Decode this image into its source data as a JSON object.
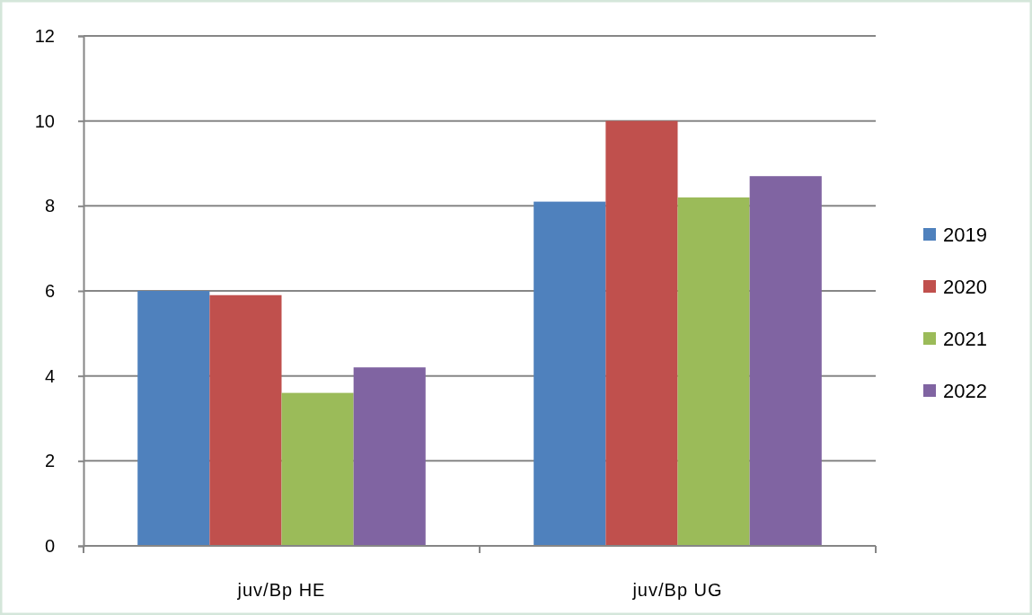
{
  "chart_data": {
    "type": "bar",
    "categories": [
      "juv/Bp HE",
      "juv/Bp UG"
    ],
    "series": [
      {
        "name": "2019",
        "color": "#4f81bd",
        "values": [
          6.0,
          8.1
        ]
      },
      {
        "name": "2020",
        "color": "#c0504d",
        "values": [
          5.9,
          10.0
        ]
      },
      {
        "name": "2021",
        "color": "#9bbb59",
        "values": [
          3.6,
          8.2
        ]
      },
      {
        "name": "2022",
        "color": "#8064a2",
        "values": [
          4.2,
          8.7
        ]
      }
    ],
    "ylim": [
      0,
      12
    ],
    "yticks": [
      0,
      2,
      4,
      6,
      8,
      10,
      12
    ],
    "grid": "y",
    "legend": "right"
  }
}
